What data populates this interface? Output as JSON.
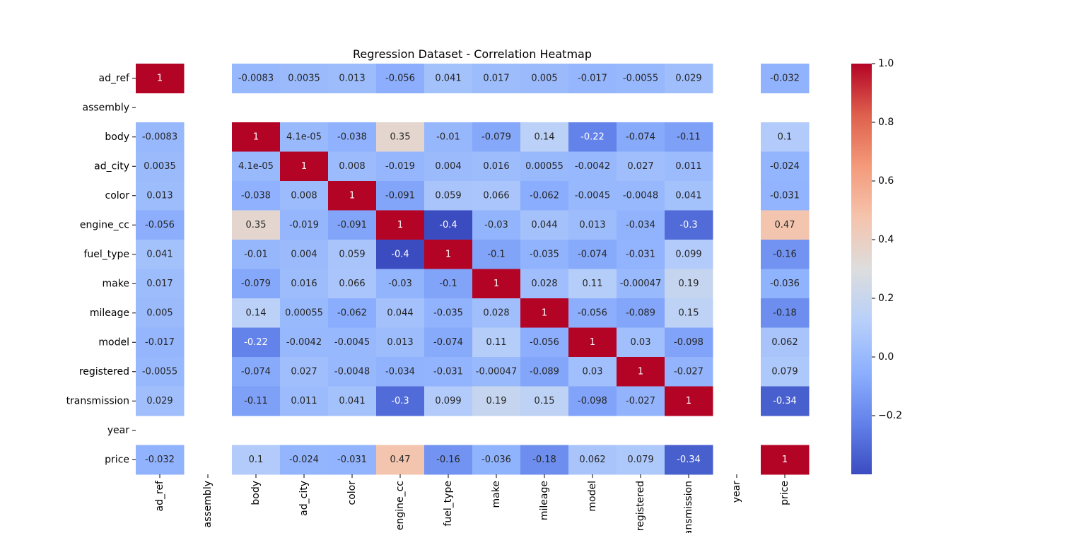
{
  "chart_data": {
    "type": "heatmap",
    "title": "Regression Dataset - Correlation Heatmap",
    "variables": [
      "ad_ref",
      "assembly",
      "body",
      "ad_city",
      "color",
      "engine_cc",
      "fuel_type",
      "make",
      "mileage",
      "model",
      "registered",
      "transmission",
      "year",
      "price"
    ],
    "matrix": [
      [
        1,
        null,
        -0.0083,
        0.0035,
        0.013,
        -0.056,
        0.041,
        0.017,
        0.005,
        -0.017,
        -0.0055,
        0.029,
        null,
        -0.032
      ],
      [
        null,
        null,
        null,
        null,
        null,
        null,
        null,
        null,
        null,
        null,
        null,
        null,
        null,
        null
      ],
      [
        -0.0083,
        null,
        1,
        4.1e-05,
        -0.038,
        0.35,
        -0.01,
        -0.079,
        0.14,
        -0.22,
        -0.074,
        -0.11,
        null,
        0.1
      ],
      [
        0.0035,
        null,
        4.1e-05,
        1,
        0.008,
        -0.019,
        0.004,
        0.016,
        0.00055,
        -0.0042,
        0.027,
        0.011,
        null,
        -0.024
      ],
      [
        0.013,
        null,
        -0.038,
        0.008,
        1,
        -0.091,
        0.059,
        0.066,
        -0.062,
        -0.0045,
        -0.0048,
        0.041,
        null,
        -0.031
      ],
      [
        -0.056,
        null,
        0.35,
        -0.019,
        -0.091,
        1,
        -0.4,
        -0.03,
        0.044,
        0.013,
        -0.034,
        -0.3,
        null,
        0.47
      ],
      [
        0.041,
        null,
        -0.01,
        0.004,
        0.059,
        -0.4,
        1,
        -0.1,
        -0.035,
        -0.074,
        -0.031,
        0.099,
        null,
        -0.16
      ],
      [
        0.017,
        null,
        -0.079,
        0.016,
        0.066,
        -0.03,
        -0.1,
        1,
        0.028,
        0.11,
        -0.00047,
        0.19,
        null,
        -0.036
      ],
      [
        0.005,
        null,
        0.14,
        0.00055,
        -0.062,
        0.044,
        -0.035,
        0.028,
        1,
        -0.056,
        -0.089,
        0.15,
        null,
        -0.18
      ],
      [
        -0.017,
        null,
        -0.22,
        -0.0042,
        -0.0045,
        0.013,
        -0.074,
        0.11,
        -0.056,
        1,
        0.03,
        -0.098,
        null,
        0.062
      ],
      [
        -0.0055,
        null,
        -0.074,
        0.027,
        -0.0048,
        -0.034,
        -0.031,
        -0.00047,
        -0.089,
        0.03,
        1,
        -0.027,
        null,
        0.079
      ],
      [
        0.029,
        null,
        -0.11,
        0.011,
        0.041,
        -0.3,
        0.099,
        0.19,
        0.15,
        -0.098,
        -0.027,
        1,
        null,
        -0.34
      ],
      [
        null,
        null,
        null,
        null,
        null,
        null,
        null,
        null,
        null,
        null,
        null,
        null,
        null,
        null
      ],
      [
        -0.032,
        null,
        0.1,
        -0.024,
        -0.031,
        0.47,
        -0.16,
        -0.036,
        -0.18,
        0.062,
        0.079,
        -0.34,
        null,
        1
      ]
    ],
    "labels": [
      [
        "1",
        "",
        "-0.0083",
        "0.0035",
        "0.013",
        "-0.056",
        "0.041",
        "0.017",
        "0.005",
        "-0.017",
        "-0.0055",
        "0.029",
        "",
        "-0.032"
      ],
      [
        "",
        "",
        "",
        "",
        "",
        "",
        "",
        "",
        "",
        "",
        "",
        "",
        "",
        ""
      ],
      [
        "-0.0083",
        "",
        "1",
        "4.1e-05",
        "-0.038",
        "0.35",
        "-0.01",
        "-0.079",
        "0.14",
        "-0.22",
        "-0.074",
        "-0.11",
        "",
        "0.1"
      ],
      [
        "0.0035",
        "",
        "4.1e-05",
        "1",
        "0.008",
        "-0.019",
        "0.004",
        "0.016",
        "0.00055",
        "-0.0042",
        "0.027",
        "0.011",
        "",
        "-0.024"
      ],
      [
        "0.013",
        "",
        "-0.038",
        "0.008",
        "1",
        "-0.091",
        "0.059",
        "0.066",
        "-0.062",
        "-0.0045",
        "-0.0048",
        "0.041",
        "",
        "-0.031"
      ],
      [
        "-0.056",
        "",
        "0.35",
        "-0.019",
        "-0.091",
        "1",
        "-0.4",
        "-0.03",
        "0.044",
        "0.013",
        "-0.034",
        "-0.3",
        "",
        "0.47"
      ],
      [
        "0.041",
        "",
        "-0.01",
        "0.004",
        "0.059",
        "-0.4",
        "1",
        "-0.1",
        "-0.035",
        "-0.074",
        "-0.031",
        "0.099",
        "",
        "-0.16"
      ],
      [
        "0.017",
        "",
        "-0.079",
        "0.016",
        "0.066",
        "-0.03",
        "-0.1",
        "1",
        "0.028",
        "0.11",
        "-0.00047",
        "0.19",
        "",
        "-0.036"
      ],
      [
        "0.005",
        "",
        "0.14",
        "0.00055",
        "-0.062",
        "0.044",
        "-0.035",
        "0.028",
        "1",
        "-0.056",
        "-0.089",
        "0.15",
        "",
        "-0.18"
      ],
      [
        "-0.017",
        "",
        "-0.22",
        "-0.0042",
        "-0.0045",
        "0.013",
        "-0.074",
        "0.11",
        "-0.056",
        "1",
        "0.03",
        "-0.098",
        "",
        "0.062"
      ],
      [
        "-0.0055",
        "",
        "-0.074",
        "0.027",
        "-0.0048",
        "-0.034",
        "-0.031",
        "-0.00047",
        "-0.089",
        "0.03",
        "1",
        "-0.027",
        "",
        "0.079"
      ],
      [
        "0.029",
        "",
        "-0.11",
        "0.011",
        "0.041",
        "-0.3",
        "0.099",
        "0.19",
        "0.15",
        "-0.098",
        "-0.027",
        "1",
        "",
        "-0.34"
      ],
      [
        "",
        "",
        "",
        "",
        "",
        "",
        "",
        "",
        "",
        "",
        "",
        "",
        "",
        ""
      ],
      [
        "-0.032",
        "",
        "0.1",
        "-0.024",
        "-0.031",
        "0.47",
        "-0.16",
        "-0.036",
        "-0.18",
        "0.062",
        "0.079",
        "-0.34",
        "",
        "1"
      ]
    ],
    "colormap": "coolwarm",
    "vmin": -0.4,
    "vmax": 1.0,
    "colorbar": {
      "ticks": [
        -0.2,
        0.0,
        0.2,
        0.4,
        0.6,
        0.8,
        1.0
      ],
      "tick_labels": [
        "−0.2",
        "0.0",
        "0.2",
        "0.4",
        "0.6",
        "0.8",
        "1.0"
      ]
    },
    "grid": false,
    "legend": "colorbar-right"
  }
}
